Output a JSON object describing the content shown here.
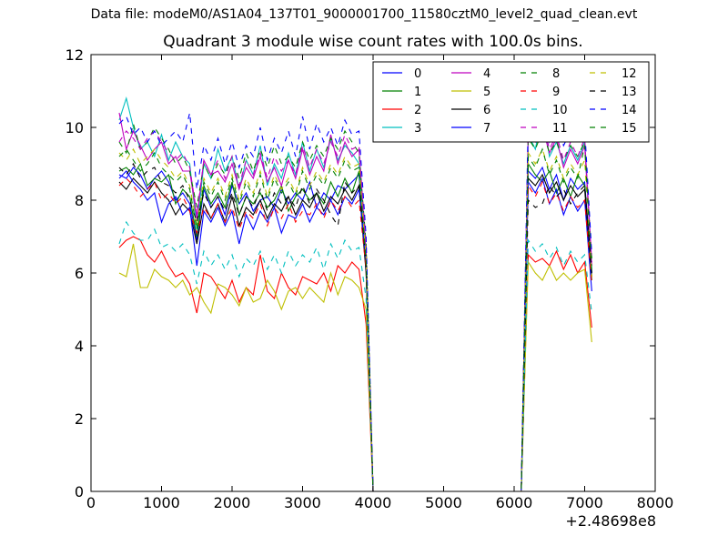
{
  "suptitle": "Data file: modeM0/AS1A04_137T01_9000001700_11580cztM0_level2_quad_clean.evt",
  "chart_data": {
    "type": "line",
    "title": "Quadrant 3 module wise count rates with 100.0s bins.",
    "xlabel": "",
    "ylabel": "",
    "x_offset_label": "+2.48698e8",
    "xlim": [
      0,
      8000
    ],
    "ylim": [
      0,
      12
    ],
    "x_ticks": [
      0,
      1000,
      2000,
      3000,
      4000,
      5000,
      6000,
      7000,
      8000
    ],
    "y_ticks": [
      0,
      2,
      4,
      6,
      8,
      10,
      12
    ],
    "legend_placement": "top-right",
    "legend_columns": 4,
    "grid": false,
    "x": [
      400,
      500,
      600,
      700,
      800,
      900,
      1000,
      1100,
      1200,
      1300,
      1400,
      1500,
      1600,
      1700,
      1800,
      1900,
      2000,
      2100,
      2200,
      2300,
      2400,
      2500,
      2600,
      2700,
      2800,
      2900,
      3000,
      3100,
      3200,
      3300,
      3400,
      3500,
      3600,
      3700,
      3800,
      3900,
      4000,
      4100,
      5000,
      6000,
      6100,
      6200,
      6300,
      6400,
      6500,
      6600,
      6700,
      6800,
      6900,
      7000,
      7100
    ],
    "series": [
      {
        "name": "0",
        "color": "#0000ff",
        "style": "solid",
        "values": [
          8.7,
          8.6,
          8.9,
          8.7,
          8.3,
          8.6,
          8.8,
          8.5,
          8.0,
          8.2,
          7.9,
          6.9,
          8.3,
          7.8,
          8.1,
          7.6,
          8.4,
          7.9,
          8.2,
          7.7,
          8.0,
          8.1,
          7.8,
          8.3,
          7.9,
          8.2,
          8.0,
          8.5,
          7.8,
          8.2,
          8.0,
          8.4,
          8.3,
          8.5,
          8.7,
          6.2,
          0.0,
          0.0,
          0.0,
          0.0,
          0.0,
          8.8,
          8.6,
          8.9,
          8.3,
          8.7,
          8.0,
          8.6,
          8.3,
          8.5,
          6.0
        ]
      },
      {
        "name": "1",
        "color": "#008000",
        "style": "solid",
        "values": [
          8.8,
          8.9,
          8.7,
          9.0,
          8.4,
          8.6,
          8.5,
          8.7,
          7.9,
          8.3,
          8.1,
          7.0,
          8.4,
          7.9,
          8.2,
          7.8,
          8.5,
          7.6,
          8.1,
          7.9,
          8.2,
          7.8,
          8.0,
          8.4,
          7.7,
          8.1,
          8.3,
          8.0,
          8.2,
          7.9,
          8.5,
          8.1,
          8.6,
          8.2,
          8.8,
          6.1,
          0.0,
          0.0,
          0.0,
          0.0,
          0.0,
          9.0,
          8.7,
          8.5,
          8.8,
          8.2,
          8.6,
          8.1,
          8.7,
          8.4,
          5.8
        ]
      },
      {
        "name": "2",
        "color": "#ff0000",
        "style": "solid",
        "values": [
          6.7,
          6.9,
          7.0,
          6.9,
          6.5,
          6.3,
          6.6,
          6.2,
          5.9,
          6.0,
          5.7,
          4.9,
          6.0,
          5.9,
          5.6,
          5.3,
          5.8,
          5.2,
          5.6,
          5.4,
          6.5,
          5.5,
          5.3,
          6.0,
          5.6,
          5.4,
          5.9,
          5.8,
          5.7,
          6.0,
          5.5,
          6.2,
          6.0,
          6.3,
          6.1,
          4.6,
          0.0,
          0.0,
          0.0,
          0.0,
          0.0,
          6.5,
          6.3,
          6.4,
          6.2,
          6.6,
          6.1,
          6.5,
          6.0,
          6.3,
          4.5
        ]
      },
      {
        "name": "3",
        "color": "#00bfbf",
        "style": "solid",
        "values": [
          10.2,
          10.8,
          10.0,
          9.4,
          9.6,
          9.2,
          9.8,
          9.1,
          9.6,
          9.2,
          9.0,
          7.2,
          9.0,
          8.6,
          9.4,
          8.8,
          9.2,
          8.3,
          9.1,
          8.7,
          9.5,
          8.4,
          9.0,
          8.6,
          9.3,
          8.7,
          9.6,
          8.8,
          9.4,
          8.9,
          9.7,
          9.1,
          9.5,
          9.3,
          9.0,
          6.4,
          0.0,
          0.0,
          0.0,
          0.0,
          0.0,
          9.8,
          9.4,
          10.4,
          9.2,
          9.6,
          9.0,
          9.5,
          9.1,
          9.6,
          6.1
        ]
      },
      {
        "name": "4",
        "color": "#bf00bf",
        "style": "solid",
        "values": [
          10.4,
          9.4,
          9.9,
          9.5,
          9.1,
          9.4,
          9.6,
          9.0,
          9.2,
          8.8,
          8.8,
          7.5,
          9.1,
          8.7,
          8.8,
          8.5,
          9.0,
          8.3,
          8.9,
          8.6,
          9.2,
          8.5,
          8.9,
          8.4,
          9.1,
          8.6,
          9.4,
          8.7,
          9.2,
          8.8,
          9.8,
          9.0,
          9.6,
          9.2,
          9.4,
          6.6,
          0.0,
          0.0,
          0.0,
          0.0,
          0.0,
          9.9,
          9.6,
          10.0,
          9.3,
          9.7,
          8.9,
          9.4,
          9.0,
          9.5,
          6.2
        ]
      },
      {
        "name": "5",
        "color": "#bfbf00",
        "style": "solid",
        "values": [
          6.0,
          5.9,
          6.8,
          5.6,
          5.6,
          6.1,
          5.9,
          5.8,
          5.6,
          5.8,
          5.4,
          5.6,
          5.2,
          4.9,
          5.7,
          5.6,
          5.4,
          5.1,
          5.6,
          5.2,
          5.3,
          5.8,
          5.5,
          5.0,
          5.5,
          5.6,
          5.3,
          5.6,
          5.4,
          5.2,
          6.0,
          5.4,
          5.9,
          5.8,
          5.6,
          5.0,
          0.0,
          0.0,
          0.0,
          0.0,
          0.0,
          6.3,
          6.0,
          5.8,
          6.2,
          5.8,
          6.0,
          5.8,
          6.0,
          6.1,
          4.1
        ]
      },
      {
        "name": "6",
        "color": "#000000",
        "style": "solid",
        "values": [
          8.5,
          8.3,
          8.6,
          8.4,
          8.2,
          8.5,
          8.2,
          8.0,
          7.6,
          7.9,
          7.7,
          6.8,
          7.9,
          7.5,
          7.9,
          7.4,
          8.1,
          7.3,
          7.8,
          7.6,
          8.0,
          7.5,
          7.9,
          7.7,
          8.1,
          7.6,
          8.0,
          7.8,
          8.2,
          7.7,
          8.1,
          7.9,
          8.3,
          8.0,
          8.4,
          6.0,
          0.0,
          0.0,
          0.0,
          0.0,
          0.0,
          8.6,
          8.4,
          8.7,
          8.2,
          8.5,
          8.0,
          8.4,
          8.1,
          8.3,
          5.9
        ]
      },
      {
        "name": "7",
        "color": "#0000ff",
        "style": "solid",
        "values": [
          8.6,
          8.8,
          8.5,
          8.3,
          8.0,
          8.2,
          7.4,
          7.9,
          8.1,
          7.6,
          7.8,
          6.2,
          7.7,
          7.4,
          7.8,
          7.3,
          7.7,
          6.8,
          7.6,
          7.2,
          7.7,
          7.4,
          7.8,
          7.1,
          7.6,
          7.5,
          7.9,
          7.4,
          7.8,
          7.6,
          8.0,
          7.6,
          8.1,
          7.9,
          8.3,
          6.3,
          0.0,
          0.0,
          0.0,
          0.0,
          0.0,
          8.5,
          8.2,
          8.6,
          7.9,
          8.3,
          7.6,
          8.1,
          7.7,
          8.0,
          5.5
        ]
      },
      {
        "name": "8",
        "color": "#008000",
        "style": "dashed",
        "values": [
          9.6,
          9.3,
          10.1,
          9.4,
          9.6,
          10.0,
          9.7,
          9.4,
          9.0,
          9.2,
          8.8,
          7.8,
          9.0,
          8.6,
          9.0,
          8.7,
          9.2,
          8.6,
          9.3,
          8.8,
          9.4,
          8.9,
          9.5,
          9.0,
          9.2,
          8.9,
          9.6,
          9.1,
          9.5,
          9.2,
          9.7,
          9.4,
          9.9,
          9.6,
          9.3,
          6.8,
          0.0,
          0.0,
          0.0,
          0.0,
          0.0,
          9.7,
          9.4,
          9.9,
          9.3,
          9.6,
          9.1,
          9.5,
          9.2,
          9.6,
          6.4
        ]
      },
      {
        "name": "9",
        "color": "#ff0000",
        "style": "dashed",
        "values": [
          8.4,
          8.6,
          8.4,
          8.1,
          8.3,
          8.5,
          8.0,
          8.2,
          7.9,
          8.1,
          7.7,
          7.1,
          7.8,
          7.5,
          7.9,
          7.4,
          7.8,
          7.2,
          7.7,
          7.5,
          7.9,
          7.3,
          7.8,
          7.5,
          7.9,
          7.4,
          7.7,
          7.6,
          7.9,
          7.5,
          8.0,
          7.7,
          8.1,
          7.8,
          8.0,
          6.1,
          0.0,
          0.0,
          0.0,
          0.0,
          0.0,
          8.4,
          8.1,
          8.5,
          7.9,
          8.2,
          7.7,
          8.1,
          7.8,
          8.0,
          5.7
        ]
      },
      {
        "name": "10",
        "color": "#00bfbf",
        "style": "dashed",
        "values": [
          6.8,
          7.4,
          7.1,
          6.9,
          6.9,
          7.2,
          6.7,
          6.8,
          6.6,
          6.8,
          6.5,
          5.7,
          6.6,
          6.2,
          6.5,
          6.1,
          6.5,
          5.9,
          6.4,
          6.2,
          6.6,
          6.1,
          6.5,
          6.0,
          6.6,
          6.2,
          6.5,
          6.3,
          6.7,
          6.1,
          6.8,
          6.4,
          6.9,
          6.6,
          6.7,
          5.3,
          0.0,
          0.0,
          0.0,
          0.0,
          0.0,
          6.9,
          6.6,
          6.8,
          6.4,
          6.7,
          6.2,
          6.6,
          6.3,
          6.5,
          4.9
        ]
      },
      {
        "name": "11",
        "color": "#bf00bf",
        "style": "dashed",
        "values": [
          9.6,
          9.9,
          9.7,
          9.4,
          9.7,
          9.9,
          9.6,
          9.3,
          9.1,
          9.3,
          8.9,
          7.6,
          9.1,
          8.7,
          9.1,
          8.6,
          9.2,
          8.4,
          9.1,
          8.7,
          9.3,
          8.6,
          9.2,
          8.8,
          9.1,
          8.7,
          9.5,
          8.9,
          9.4,
          9.0,
          9.6,
          9.2,
          9.8,
          9.4,
          9.5,
          6.6,
          0.0,
          0.0,
          0.0,
          0.0,
          0.0,
          10.0,
          9.6,
          10.2,
          9.4,
          9.8,
          9.1,
          9.6,
          9.2,
          9.7,
          6.3
        ]
      },
      {
        "name": "12",
        "color": "#bfbf00",
        "style": "dashed",
        "values": [
          9.3,
          9.1,
          9.4,
          9.0,
          9.2,
          9.4,
          9.1,
          8.9,
          8.6,
          8.8,
          8.4,
          7.3,
          8.6,
          8.2,
          8.6,
          8.1,
          8.7,
          8.0,
          8.6,
          8.2,
          8.8,
          8.1,
          8.7,
          8.3,
          8.6,
          8.2,
          8.9,
          8.4,
          8.8,
          8.5,
          9.0,
          8.7,
          9.2,
          8.9,
          9.0,
          6.4,
          0.0,
          0.0,
          0.0,
          0.0,
          0.0,
          9.3,
          9.0,
          9.4,
          8.8,
          9.2,
          8.6,
          9.0,
          8.7,
          9.1,
          5.9
        ]
      },
      {
        "name": "13",
        "color": "#000000",
        "style": "dashed",
        "values": [
          8.9,
          8.7,
          9.0,
          8.6,
          8.8,
          8.9,
          8.5,
          8.4,
          8.2,
          8.4,
          8.0,
          7.4,
          8.2,
          7.8,
          8.1,
          7.7,
          8.2,
          7.6,
          8.1,
          7.8,
          8.3,
          7.7,
          8.2,
          7.9,
          8.1,
          7.8,
          8.4,
          7.9,
          8.3,
          8.0,
          7.6,
          7.3,
          8.5,
          8.2,
          8.4,
          6.3,
          0.0,
          0.0,
          0.0,
          0.0,
          0.0,
          8.0,
          7.8,
          7.9,
          8.4,
          8.1,
          8.3,
          7.9,
          8.2,
          8.4,
          6.0
        ]
      },
      {
        "name": "14",
        "color": "#0000ff",
        "style": "dashed",
        "values": [
          10.1,
          10.3,
          9.8,
          10.0,
          9.6,
          9.9,
          9.5,
          9.7,
          9.9,
          9.6,
          10.4,
          8.3,
          9.5,
          9.1,
          9.7,
          9.0,
          9.6,
          8.9,
          9.5,
          9.2,
          10.0,
          9.1,
          9.7,
          9.3,
          9.9,
          9.2,
          10.3,
          9.4,
          10.1,
          9.6,
          10.0,
          9.5,
          10.2,
          9.8,
          9.9,
          7.0,
          0.0,
          0.0,
          0.0,
          0.0,
          0.0,
          10.3,
          9.9,
          10.4,
          9.6,
          10.1,
          9.5,
          9.9,
          9.6,
          10.0,
          6.5
        ]
      },
      {
        "name": "15",
        "color": "#008000",
        "style": "dashed",
        "values": [
          9.2,
          9.4,
          9.1,
          8.8,
          9.0,
          9.3,
          8.9,
          8.7,
          8.5,
          8.7,
          8.3,
          7.2,
          8.5,
          8.1,
          8.5,
          8.0,
          8.6,
          7.9,
          8.5,
          8.1,
          8.7,
          8.0,
          8.6,
          8.2,
          8.5,
          8.1,
          8.8,
          8.3,
          8.7,
          8.4,
          8.9,
          8.6,
          9.1,
          8.8,
          8.9,
          6.3,
          0.0,
          0.0,
          0.0,
          0.0,
          0.0,
          9.2,
          8.9,
          9.4,
          8.7,
          9.1,
          8.5,
          8.9,
          8.6,
          9.5,
          6.0
        ]
      }
    ]
  }
}
